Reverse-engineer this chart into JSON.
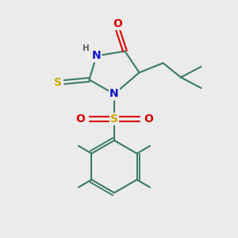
{
  "bg_color": "#ebebeb",
  "bond_color": "#3a7a6a",
  "bond_width": 1.5,
  "n_color": "#1010cc",
  "o_color": "#dd0000",
  "s_color": "#ccaa00",
  "h_color": "#606060",
  "font_size_atom": 9,
  "font_size_h": 7.5,
  "xlim": [
    0,
    10
  ],
  "ylim": [
    0,
    10
  ]
}
